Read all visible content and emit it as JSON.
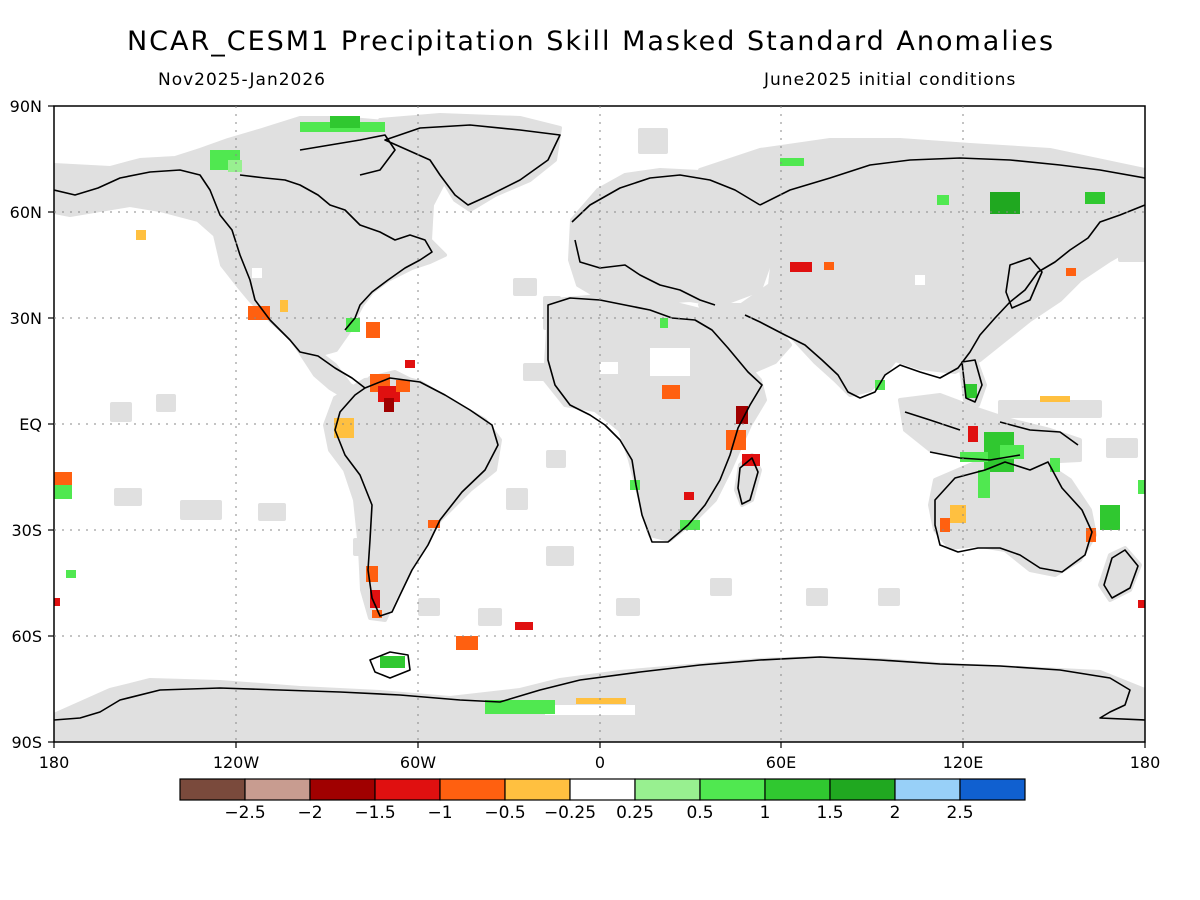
{
  "title": "NCAR_CESM1 Precipitation Skill Masked Standard Anomalies",
  "subtitle_left": "Nov2025-Jan2026",
  "subtitle_right": "June2025 initial conditions",
  "lat_labels": [
    "90N",
    "60N",
    "30N",
    "EQ",
    "30S",
    "60S",
    "90S"
  ],
  "lon_labels": [
    "180",
    "120W",
    "60W",
    "0",
    "60E",
    "120E",
    "180"
  ],
  "colorbar": {
    "colors": [
      "#7a4a3c",
      "#c89c90",
      "#a00000",
      "#e01010",
      "#ff6010",
      "#ffc040",
      "#ffffff",
      "#98f090",
      "#50e850",
      "#30c830",
      "#20a820",
      "#98d0f8",
      "#1060d0"
    ],
    "labels": [
      "-2.5",
      "-2",
      "-1.5",
      "-1",
      "-0.5",
      "-0.25",
      "0.25",
      "0.5",
      "1",
      "1.5",
      "2",
      "2.5"
    ]
  },
  "colors": {
    "masked_gray": "#e0e0e0",
    "coastline": "#000000"
  }
}
